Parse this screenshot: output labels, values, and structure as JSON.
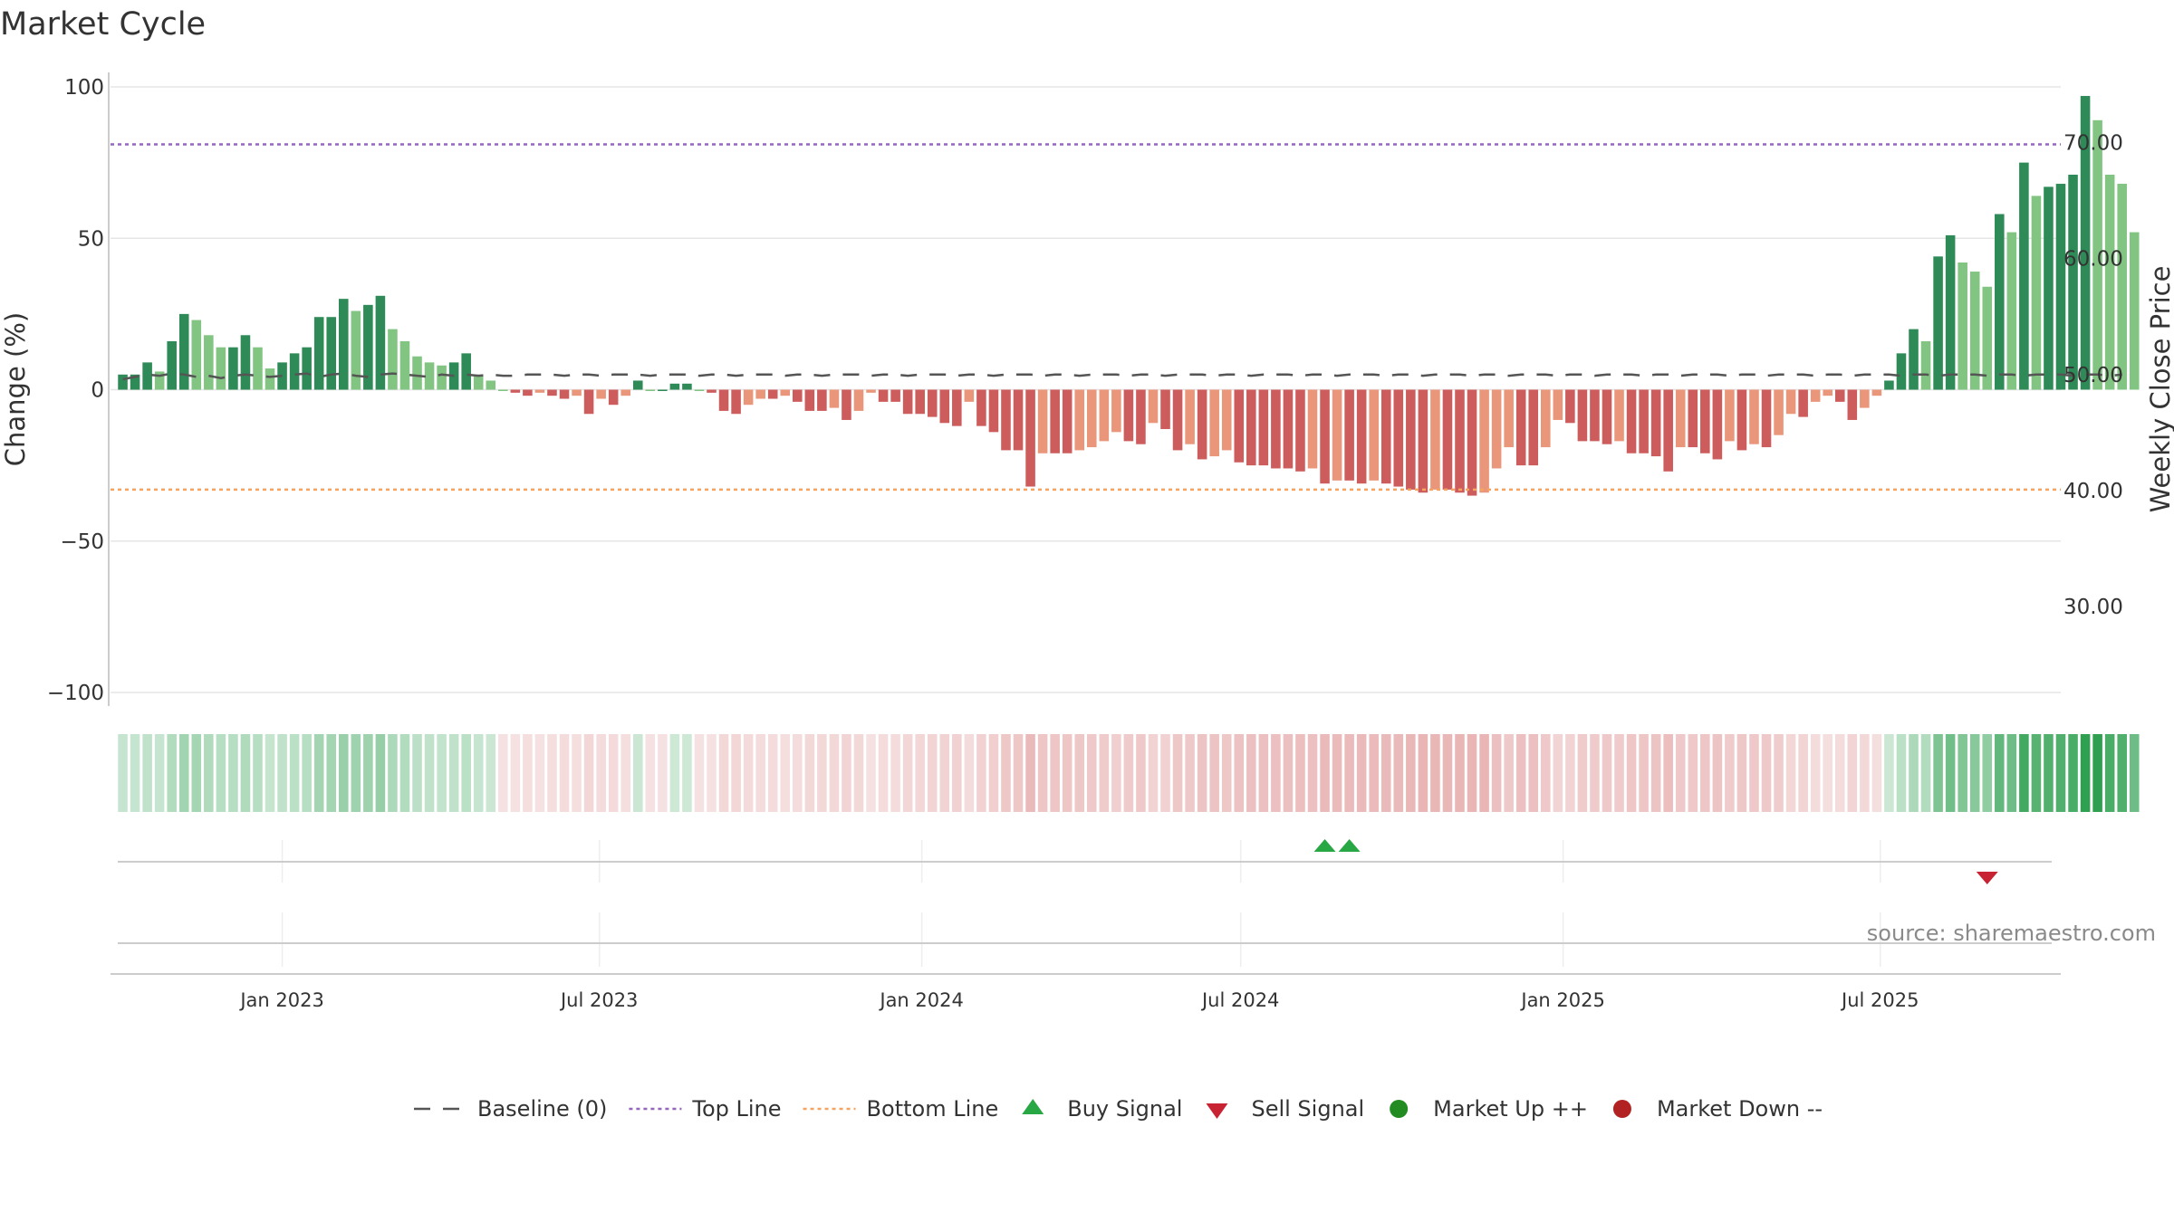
{
  "title": "Market Cycle",
  "source_text": "source: sharemaestro.com",
  "colors": {
    "up_strong": "#2e8b57",
    "up_light": "#82c482",
    "down_strong": "#cd5c5c",
    "down_light": "#e9967a",
    "top_line": "#9467bd",
    "bottom_line": "#f4a460",
    "buy": "#28a745",
    "sell": "#c82333",
    "market_up": "#228b22",
    "market_down": "#b22222"
  },
  "chart_data": {
    "type": "bar",
    "ylabel": "Change (%)",
    "y2label": "Weekly Close Price",
    "ylim": [
      -100,
      100
    ],
    "yticks": [
      100,
      50,
      0,
      -50,
      -100
    ],
    "ytick_labels": [
      "100",
      "50",
      "0",
      "−50",
      "−100"
    ],
    "y2lim": [
      22.6,
      74.8
    ],
    "y2ticks": [
      70,
      60,
      50,
      40,
      30
    ],
    "y2tick_labels": [
      "70.00",
      "60.00",
      "50.00",
      "40.00",
      "30.00"
    ],
    "top_line": 81,
    "bottom_line": -33,
    "x_start": "2022-09-25",
    "x_end": "2025-10-12",
    "xticks": [
      {
        "date": "2023-01-01",
        "label": "Jan 2023"
      },
      {
        "date": "2023-07-01",
        "label": "Jul 2023"
      },
      {
        "date": "2024-01-01",
        "label": "Jan 2024"
      },
      {
        "date": "2024-07-01",
        "label": "Jul 2024"
      },
      {
        "date": "2025-01-01",
        "label": "Jan 2025"
      },
      {
        "date": "2025-07-01",
        "label": "Jul 2025"
      }
    ],
    "first_week": "2022-10-02",
    "week_step_days": 7,
    "weekly_change": [
      5,
      5,
      9,
      6,
      16,
      25,
      23,
      18,
      14,
      14,
      18,
      14,
      7,
      9,
      12,
      14,
      24,
      24,
      30,
      26,
      28,
      31,
      20,
      16,
      11,
      9,
      8,
      9,
      12,
      5,
      3,
      0,
      -1,
      -2,
      -1,
      -2,
      -3,
      -2,
      -8,
      -3,
      -5,
      -2,
      3,
      0,
      0,
      2,
      2,
      0,
      -1,
      -7,
      -8,
      -5,
      -3,
      -3,
      -2,
      -4,
      -7,
      -7,
      -6,
      -10,
      -7,
      -1,
      -4,
      -4,
      -8,
      -8,
      -9,
      -11,
      -12,
      -4,
      -12,
      -14,
      -20,
      -20,
      -32,
      -21,
      -21,
      -21,
      -20,
      -19,
      -17,
      -14,
      -17,
      -18,
      -11,
      -13,
      -20,
      -18,
      -23,
      -22,
      -20,
      -24,
      -25,
      -25,
      -26,
      -26,
      -27,
      -26,
      -31,
      -30,
      -30,
      -31,
      -30,
      -31,
      -32,
      -33,
      -34,
      -33,
      -33,
      -34,
      -35,
      -34,
      -26,
      -19,
      -25,
      -25,
      -19,
      -10,
      -11,
      -17,
      -17,
      -18,
      -17,
      -21,
      -21,
      -22,
      -27,
      -19,
      -19,
      -21,
      -23,
      -17,
      -20,
      -18,
      -19,
      -15,
      -8,
      -9,
      -4,
      -2,
      -4,
      -10,
      -6,
      -2,
      3,
      12,
      20,
      16,
      44,
      51,
      42,
      39,
      34,
      58,
      52,
      75,
      64,
      67,
      68,
      71,
      97,
      89,
      71,
      68,
      52
    ],
    "weekly_close": [
      49.6,
      49.8,
      50.0,
      49.9,
      50.1,
      50.0,
      49.8,
      49.9,
      49.7,
      49.9,
      50.0,
      49.9,
      49.8,
      49.9,
      50.0,
      50.1,
      49.8,
      50.0,
      50.1,
      49.9,
      49.8,
      50.0,
      50.1,
      50.0,
      49.9,
      49.8,
      50.0,
      49.9,
      50.0,
      49.9,
      50.0,
      49.9,
      49.9,
      50.0,
      50.0,
      50.0,
      49.9,
      50.0,
      50.0,
      49.9,
      50.0,
      50.0,
      50.0,
      49.9,
      50.0,
      50.0,
      50.0,
      49.9,
      50.0,
      50.0,
      49.9,
      50.0,
      50.0,
      50.0,
      49.9,
      50.0,
      50.0,
      49.9,
      50.0,
      50.0,
      50.0,
      49.9,
      50.0,
      50.0,
      49.9,
      50.0,
      50.0,
      50.0,
      49.9,
      50.0,
      50.0,
      49.9,
      50.0,
      50.0,
      50.0,
      49.9,
      50.0,
      50.0,
      49.9,
      50.0,
      50.0,
      50.0,
      49.9,
      50.0,
      50.0,
      49.9,
      50.0,
      50.0,
      50.0,
      49.9,
      50.0,
      50.0,
      49.9,
      50.0,
      50.0,
      50.0,
      49.9,
      50.0,
      50.0,
      49.9,
      50.0,
      50.0,
      50.0,
      49.9,
      50.0,
      50.0,
      49.9,
      50.0,
      50.0,
      50.0,
      49.9,
      50.0,
      50.0,
      49.9,
      50.0,
      50.0,
      50.0,
      49.9,
      50.0,
      50.0,
      49.9,
      50.0,
      50.0,
      50.0,
      49.9,
      50.0,
      50.0,
      49.9,
      50.0,
      50.0,
      50.0,
      49.9,
      50.0,
      50.0,
      49.9,
      50.0,
      50.0,
      50.0,
      49.9,
      50.0,
      50.0,
      49.9,
      50.0,
      50.0,
      50.0,
      49.9,
      50.0,
      50.0,
      49.9,
      50.0,
      50.0,
      50.0,
      49.9,
      50.0,
      50.0,
      49.9,
      50.0,
      50.0,
      50.0,
      49.9,
      50.0,
      50.0,
      49.9,
      50.0
    ],
    "buy_signals": [
      "2024-08-18",
      "2024-09-01"
    ],
    "sell_signals": [
      "2025-08-31"
    ],
    "legend": [
      {
        "key": "baseline",
        "label": "Baseline (0)"
      },
      {
        "key": "top",
        "label": "Top Line"
      },
      {
        "key": "bottom",
        "label": "Bottom Line"
      },
      {
        "key": "buy",
        "label": "Buy Signal"
      },
      {
        "key": "sell",
        "label": "Sell Signal"
      },
      {
        "key": "up",
        "label": "Market Up ++"
      },
      {
        "key": "down",
        "label": "Market Down --"
      }
    ],
    "legend_position": "bottom-center",
    "grid": true
  }
}
